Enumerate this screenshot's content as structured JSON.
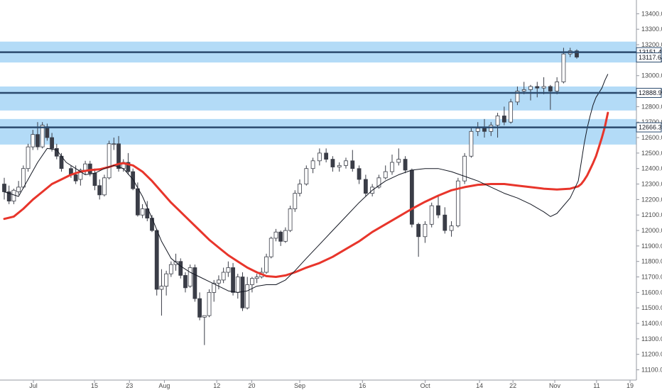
{
  "colors": {
    "zone_fill": "#b3dbf7",
    "level_line": "#2a4a6e",
    "ma_fast": "#131722",
    "ma_slow": "#e8352b",
    "candle_up_fill": "#ffffff",
    "candle_down_fill": "#3a3d47",
    "candle_border": "#3a3d47",
    "axis_text": "#4a4a4a",
    "tag_bg": "#ffffff",
    "tag_border": "#2a4a6e"
  },
  "chart_data": {
    "type": "candlestick",
    "title": "",
    "xlabel": "",
    "ylabel": "",
    "ylim": [
      11075,
      13475
    ],
    "y_ticks": [
      11100,
      11200,
      11300,
      11400,
      11500,
      11600,
      11700,
      11800,
      11900,
      12000,
      12100,
      12200,
      12300,
      12400,
      12500,
      12600,
      12700,
      12800,
      12900,
      13000,
      13100,
      13200,
      13300,
      13400
    ],
    "y_tick_labels": [
      "11100.0",
      "11200.0",
      "11300.0",
      "11400.0",
      "11500.0",
      "11600.0",
      "11700.0",
      "11800.0",
      "11900.0",
      "12000.0",
      "12100.0",
      "12200.0",
      "12300.0",
      "12400.0",
      "12500.0",
      "12600.0",
      "12700.0",
      "12800.0",
      "12900.0",
      "13000.0",
      "13100.0",
      "13200.0",
      "13300.0",
      "13400.0"
    ],
    "x_tick_labels": [
      {
        "label": "Jul",
        "day": 1
      },
      {
        "label": "15",
        "day": 15
      },
      {
        "label": "23",
        "day": 23
      },
      {
        "label": "Aug",
        "day": 31
      },
      {
        "label": "12",
        "day": 43
      },
      {
        "label": "20",
        "day": 51
      },
      {
        "label": "Sep",
        "day": 62
      },
      {
        "label": "16",
        "day": 77
      },
      {
        "label": "Oct",
        "day": 92
      },
      {
        "label": "14",
        "day": 105
      },
      {
        "label": "22",
        "day": 113
      },
      {
        "label": "Nov",
        "day": 123
      },
      {
        "label": "11",
        "day": 133
      },
      {
        "label": "19",
        "day": 141
      }
    ],
    "zones": [
      {
        "from": 13085,
        "to": 13220
      },
      {
        "from": 12775,
        "to": 12930
      },
      {
        "from": 12555,
        "to": 12720
      }
    ],
    "levels": [
      {
        "price": 13151.4,
        "label": "13151.4"
      },
      {
        "price": 12888.9,
        "label": "12888.9"
      },
      {
        "price": 12666.3,
        "label": "12666.3"
      }
    ],
    "price_tags": [
      {
        "price": 13117.6,
        "label": "13117.6"
      }
    ],
    "ma_fast": [
      [
        1,
        12250
      ],
      [
        4,
        12220
      ],
      [
        8,
        12440
      ],
      [
        10,
        12530
      ],
      [
        12,
        12520
      ],
      [
        14,
        12440
      ],
      [
        16,
        12400
      ],
      [
        18,
        12360
      ],
      [
        20,
        12370
      ],
      [
        22,
        12400
      ],
      [
        24,
        12420
      ],
      [
        26,
        12400
      ],
      [
        28,
        12330
      ],
      [
        30,
        12220
      ],
      [
        32,
        12080
      ],
      [
        34,
        11930
      ],
      [
        36,
        11820
      ],
      [
        38,
        11770
      ],
      [
        40,
        11730
      ],
      [
        42,
        11700
      ],
      [
        44,
        11670
      ],
      [
        46,
        11640
      ],
      [
        48,
        11610
      ],
      [
        50,
        11600
      ],
      [
        52,
        11610
      ],
      [
        54,
        11640
      ],
      [
        56,
        11650
      ],
      [
        58,
        11650
      ],
      [
        60,
        11680
      ],
      [
        62,
        11740
      ],
      [
        64,
        11820
      ],
      [
        66,
        11910
      ],
      [
        68,
        12000
      ],
      [
        70,
        12090
      ],
      [
        72,
        12180
      ],
      [
        74,
        12260
      ],
      [
        76,
        12320
      ],
      [
        78,
        12360
      ],
      [
        80,
        12390
      ],
      [
        82,
        12400
      ],
      [
        84,
        12400
      ],
      [
        86,
        12380
      ],
      [
        88,
        12350
      ],
      [
        90,
        12320
      ],
      [
        92,
        12280
      ],
      [
        94,
        12240
      ],
      [
        96,
        12210
      ],
      [
        98,
        12170
      ],
      [
        100,
        12120
      ],
      [
        101,
        12090
      ],
      [
        102,
        12110
      ],
      [
        104,
        12210
      ],
      [
        106,
        12320
      ],
      [
        108,
        12440
      ],
      [
        110,
        12560
      ],
      [
        112,
        12660
      ],
      [
        114,
        12740
      ],
      [
        116,
        12810
      ],
      [
        118,
        12860
      ],
      [
        120,
        12890
      ],
      [
        122,
        12920
      ],
      [
        124,
        12970
      ],
      [
        126,
        13010
      ]
    ],
    "ma_slow": [
      [
        1,
        12075
      ],
      [
        3,
        12090
      ],
      [
        5,
        12140
      ],
      [
        7,
        12200
      ],
      [
        9,
        12250
      ],
      [
        11,
        12300
      ],
      [
        13,
        12330
      ],
      [
        15,
        12360
      ],
      [
        17,
        12380
      ],
      [
        19,
        12390
      ],
      [
        21,
        12395
      ],
      [
        23,
        12410
      ],
      [
        25,
        12430
      ],
      [
        26,
        12435
      ],
      [
        28,
        12420
      ],
      [
        30,
        12380
      ],
      [
        32,
        12320
      ],
      [
        34,
        12250
      ],
      [
        36,
        12180
      ],
      [
        38,
        12120
      ],
      [
        40,
        12060
      ],
      [
        42,
        12000
      ],
      [
        44,
        11940
      ],
      [
        46,
        11890
      ],
      [
        48,
        11840
      ],
      [
        50,
        11800
      ],
      [
        52,
        11760
      ],
      [
        54,
        11730
      ],
      [
        56,
        11705
      ],
      [
        58,
        11700
      ],
      [
        60,
        11710
      ],
      [
        62,
        11730
      ],
      [
        64,
        11760
      ],
      [
        66,
        11790
      ],
      [
        68,
        11830
      ],
      [
        70,
        11880
      ],
      [
        72,
        11930
      ],
      [
        74,
        11990
      ],
      [
        76,
        12040
      ],
      [
        78,
        12090
      ],
      [
        80,
        12140
      ],
      [
        82,
        12185
      ],
      [
        84,
        12225
      ],
      [
        86,
        12260
      ],
      [
        88,
        12280
      ],
      [
        90,
        12295
      ],
      [
        92,
        12300
      ],
      [
        94,
        12300
      ],
      [
        96,
        12290
      ],
      [
        98,
        12280
      ],
      [
        100,
        12270
      ],
      [
        102,
        12265
      ],
      [
        104,
        12270
      ],
      [
        106,
        12285
      ],
      [
        108,
        12300
      ],
      [
        110,
        12325
      ],
      [
        112,
        12355
      ],
      [
        114,
        12395
      ],
      [
        116,
        12435
      ],
      [
        118,
        12480
      ],
      [
        120,
        12540
      ],
      [
        122,
        12600
      ],
      [
        124,
        12670
      ],
      [
        126,
        12760
      ]
    ],
    "candles": [
      [
        1,
        12300,
        12340,
        12200,
        12250
      ],
      [
        2,
        12250,
        12290,
        12170,
        12190
      ],
      [
        3,
        12190,
        12270,
        12170,
        12260
      ],
      [
        4,
        12250,
        12320,
        12230,
        12280
      ],
      [
        5,
        12280,
        12420,
        12270,
        12400
      ],
      [
        6,
        12400,
        12560,
        12380,
        12540
      ],
      [
        7,
        12540,
        12650,
        12520,
        12620
      ],
      [
        8,
        12620,
        12700,
        12520,
        12540
      ],
      [
        9,
        12540,
        12700,
        12530,
        12680
      ],
      [
        10,
        12670,
        12690,
        12580,
        12600
      ],
      [
        11,
        12600,
        12630,
        12510,
        12530
      ],
      [
        12,
        12530,
        12560,
        12460,
        12480
      ],
      [
        13,
        12480,
        12500,
        12380,
        12400
      ],
      [
        15,
        12400,
        12420,
        12340,
        12360
      ],
      [
        16,
        12360,
        12420,
        12300,
        12320
      ],
      [
        17,
        12330,
        12400,
        12290,
        12390
      ],
      [
        18,
        12390,
        12450,
        12360,
        12430
      ],
      [
        19,
        12430,
        12450,
        12350,
        12370
      ],
      [
        20,
        12370,
        12400,
        12260,
        12290
      ],
      [
        21,
        12290,
        12330,
        12200,
        12230
      ],
      [
        22,
        12230,
        12360,
        12220,
        12340
      ],
      [
        23,
        12340,
        12580,
        12330,
        12560
      ],
      [
        24,
        12560,
        12600,
        12520,
        12560
      ],
      [
        25,
        12560,
        12610,
        12380,
        12400
      ],
      [
        26,
        12400,
        12460,
        12380,
        12440
      ],
      [
        27,
        12440,
        12500,
        12360,
        12380
      ],
      [
        28,
        12380,
        12400,
        12260,
        12270
      ],
      [
        29,
        12270,
        12310,
        12090,
        12100
      ],
      [
        30,
        12100,
        12170,
        12080,
        12140
      ],
      [
        31,
        12140,
        12190,
        12060,
        12080
      ],
      [
        32,
        12080,
        12100,
        11990,
        12000
      ],
      [
        33,
        12000,
        12010,
        11580,
        11620
      ],
      [
        34,
        11620,
        11750,
        11450,
        11640
      ],
      [
        35,
        11640,
        11740,
        11580,
        11720
      ],
      [
        36,
        11720,
        11800,
        11700,
        11780
      ],
      [
        37,
        11780,
        11850,
        11740,
        11800
      ],
      [
        38,
        11800,
        11820,
        11690,
        11710
      ],
      [
        39,
        11710,
        11730,
        11600,
        11630
      ],
      [
        40,
        11640,
        11780,
        11630,
        11760
      ],
      [
        41,
        11760,
        11780,
        11540,
        11560
      ],
      [
        42,
        11560,
        11600,
        11420,
        11440
      ],
      [
        43,
        11440,
        11450,
        11260,
        11450
      ],
      [
        44,
        11450,
        11620,
        11440,
        11600
      ],
      [
        45,
        11600,
        11680,
        11540,
        11660
      ],
      [
        46,
        11660,
        11710,
        11620,
        11680
      ],
      [
        47,
        11680,
        11760,
        11660,
        11730
      ],
      [
        48,
        11730,
        11800,
        11700,
        11760
      ],
      [
        49,
        11760,
        11790,
        11580,
        11600
      ],
      [
        50,
        11600,
        11720,
        11560,
        11700
      ],
      [
        51,
        11700,
        11730,
        11480,
        11500
      ],
      [
        52,
        11500,
        11700,
        11490,
        11650
      ],
      [
        53,
        11650,
        11700,
        11600,
        11690
      ],
      [
        54,
        11690,
        11720,
        11660,
        11700
      ],
      [
        55,
        11700,
        11760,
        11690,
        11730
      ],
      [
        56,
        11730,
        11850,
        11720,
        11830
      ],
      [
        57,
        11830,
        11960,
        11820,
        11950
      ],
      [
        58,
        11950,
        12010,
        11930,
        11990
      ],
      [
        59,
        11990,
        12000,
        11900,
        11930
      ],
      [
        60,
        11930,
        12020,
        11920,
        12000
      ],
      [
        61,
        12000,
        12160,
        11990,
        12140
      ],
      [
        62,
        12140,
        12260,
        12120,
        12240
      ],
      [
        63,
        12240,
        12330,
        12220,
        12300
      ],
      [
        64,
        12300,
        12420,
        12290,
        12400
      ],
      [
        65,
        12400,
        12470,
        12370,
        12450
      ],
      [
        66,
        12450,
        12530,
        12420,
        12500
      ],
      [
        67,
        12500,
        12530,
        12440,
        12460
      ],
      [
        68,
        12460,
        12480,
        12380,
        12410
      ],
      [
        69,
        12410,
        12440,
        12380,
        12420
      ],
      [
        70,
        12420,
        12470,
        12400,
        12450
      ],
      [
        71,
        12450,
        12520,
        12380,
        12400
      ],
      [
        72,
        12400,
        12420,
        12300,
        12330
      ],
      [
        73,
        12330,
        12360,
        12220,
        12240
      ],
      [
        74,
        12240,
        12300,
        12220,
        12280
      ],
      [
        75,
        12280,
        12360,
        12270,
        12340
      ],
      [
        76,
        12340,
        12420,
        12330,
        12380
      ],
      [
        77,
        12380,
        12490,
        12360,
        12440
      ],
      [
        78,
        12440,
        12530,
        12420,
        12460
      ],
      [
        79,
        12460,
        12480,
        12370,
        12390
      ],
      [
        80,
        12390,
        12400,
        12020,
        12040
      ],
      [
        81,
        12040,
        12050,
        11830,
        11960
      ],
      [
        82,
        11960,
        12060,
        11920,
        12040
      ],
      [
        83,
        12040,
        12180,
        12020,
        12160
      ],
      [
        84,
        12160,
        12220,
        12080,
        12100
      ],
      [
        85,
        12100,
        12150,
        11980,
        12000
      ],
      [
        86,
        12000,
        12060,
        11960,
        12030
      ],
      [
        87,
        12030,
        12340,
        12020,
        12320
      ],
      [
        88,
        12320,
        12500,
        12300,
        12480
      ],
      [
        89,
        12480,
        12660,
        12470,
        12640
      ],
      [
        90,
        12640,
        12700,
        12610,
        12660
      ],
      [
        91,
        12660,
        12720,
        12600,
        12640
      ],
      [
        92,
        12640,
        12700,
        12610,
        12680
      ],
      [
        93,
        12680,
        12760,
        12600,
        12740
      ],
      [
        94,
        12740,
        12800,
        12680,
        12700
      ],
      [
        95,
        12700,
        12850,
        12690,
        12830
      ],
      [
        96,
        12830,
        12930,
        12810,
        12900
      ],
      [
        97,
        12900,
        12960,
        12880,
        12910
      ],
      [
        98,
        12910,
        12940,
        12840,
        12930
      ],
      [
        99,
        12930,
        12960,
        12860,
        12920
      ],
      [
        100,
        12920,
        12990,
        12880,
        12930
      ],
      [
        101,
        12930,
        12940,
        12780,
        12900
      ],
      [
        102,
        12900,
        12990,
        12880,
        12960
      ],
      [
        103,
        12960,
        13180,
        12950,
        13140
      ],
      [
        104,
        13140,
        13180,
        13120,
        13160
      ],
      [
        105,
        13160,
        13170,
        13110,
        13120
      ]
    ]
  }
}
